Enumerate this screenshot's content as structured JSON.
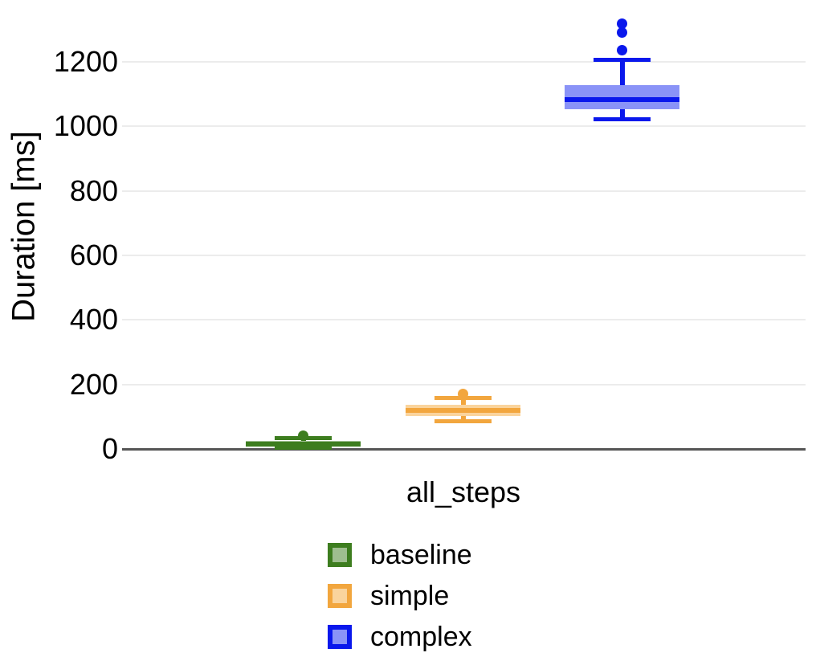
{
  "chart_data": {
    "type": "boxplot",
    "title": "",
    "xlabel": "all_steps",
    "ylabel": "Duration [ms]",
    "categories": [
      "all_steps"
    ],
    "yticks": [
      0,
      200,
      400,
      600,
      800,
      1000,
      1200
    ],
    "ylim": [
      0,
      1380
    ],
    "grid": "horizontal",
    "legend_position": "bottom-center",
    "colors": {
      "background": "#ffffff",
      "gridline": "#ececec",
      "zero_axis": "#555555",
      "text": "#000000"
    },
    "series": [
      {
        "name": "baseline",
        "border_color": "#3d7d1f",
        "fill_color": "#9ebe8f",
        "min": 3,
        "q1": 7,
        "median": 16,
        "q3": 26,
        "max": 33,
        "outliers": [
          42
        ]
      },
      {
        "name": "simple",
        "border_color": "#f2a63e",
        "fill_color": "#fad49d",
        "min": 86,
        "q1": 103,
        "median": 119,
        "q3": 136,
        "max": 158,
        "outliers": [
          171
        ]
      },
      {
        "name": "complex",
        "border_color": "#0a18ec",
        "fill_color": "#8a93f7",
        "min": 1023,
        "q1": 1053,
        "median": 1082,
        "q3": 1128,
        "max": 1205,
        "outliers": [
          1235,
          1290,
          1318
        ]
      }
    ]
  }
}
